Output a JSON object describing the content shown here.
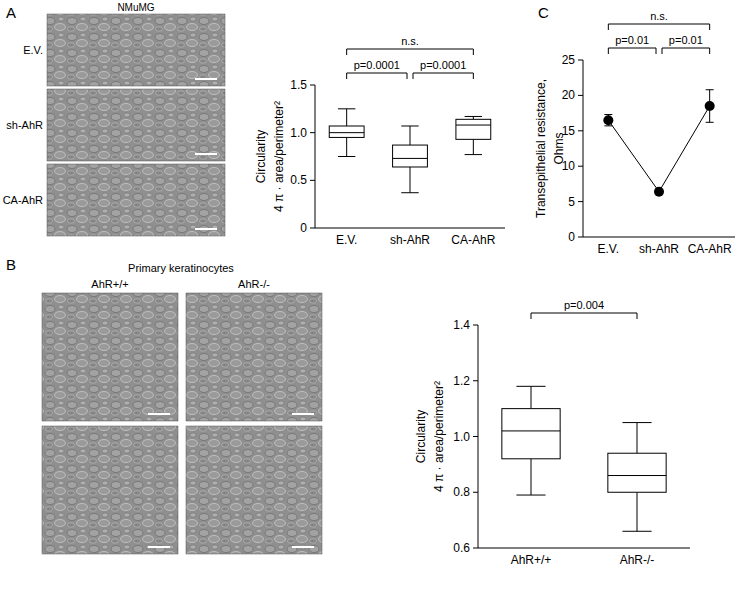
{
  "chart_data": [
    {
      "type": "box",
      "color": "#000000",
      "ylabel": [
        "Circularity",
        "4 π · area/perimeter²"
      ],
      "categories": [
        "E.V.",
        "sh-AhR",
        "CA-AhR"
      ],
      "min": [
        0.75,
        0.37,
        0.77
      ],
      "q1": [
        0.95,
        0.64,
        0.93
      ],
      "median": [
        1.0,
        0.73,
        1.08
      ],
      "q3": [
        1.07,
        0.87,
        1.14
      ],
      "max": [
        1.25,
        1.07,
        1.17
      ],
      "ylim": [
        0,
        1.5
      ],
      "yticks": [
        0,
        0.5,
        {
          "value": 1,
          "label": "1.0"
        },
        1.5
      ],
      "annotations": [
        {
          "text": "p=0.0001",
          "from": 0,
          "to": 1
        },
        {
          "text": "p=0.0001",
          "from": 1,
          "to": 2
        },
        {
          "text": "n.s.",
          "from": 0,
          "to": 2
        }
      ]
    },
    {
      "type": "box",
      "color": "#000000",
      "ylabel": [
        "Circularity",
        "4 π · area/perimeter²"
      ],
      "categories": [
        "AhR+/+",
        "AhR-/-"
      ],
      "min": [
        0.79,
        0.66
      ],
      "q1": [
        0.92,
        0.8
      ],
      "median": [
        1.02,
        0.86
      ],
      "q3": [
        1.1,
        0.94
      ],
      "max": [
        1.18,
        1.05
      ],
      "ylim": [
        0.6,
        1.4
      ],
      "yticks": [
        0.6,
        0.8,
        {
          "value": 1,
          "label": "1.0"
        },
        1.2,
        1.4
      ],
      "annotations": [
        {
          "text": "p=0.004",
          "from": 0,
          "to": 1
        }
      ]
    },
    {
      "type": "line",
      "color": "#000000",
      "marker": "circle",
      "ylabel": [
        "Transepithelial resistance,",
        "Ohms"
      ],
      "categories": [
        "E.V.",
        "sh-AhR",
        "CA-AhR"
      ],
      "values": [
        16.5,
        6.4,
        18.5
      ],
      "errors": [
        0.8,
        0.3,
        2.3
      ],
      "ylim": [
        0,
        25
      ],
      "yticks": [
        0,
        5,
        10,
        15,
        20,
        25
      ],
      "annotations": [
        {
          "text": "p=0.01",
          "from": 0,
          "to": 1
        },
        {
          "text": "p=0.01",
          "from": 1,
          "to": 2
        },
        {
          "text": "n.s.",
          "from": 0,
          "to": 2
        }
      ]
    }
  ],
  "figure": {
    "panel_labels": [
      "A",
      "B",
      "C"
    ],
    "images_A": {
      "title": "NMuMG",
      "rows": [
        "E.V.",
        "sh-AhR",
        "CA-AhR"
      ]
    },
    "images_B": {
      "title": "Primary keratinocytes",
      "columns": [
        "AhR+/+",
        "AhR-/-"
      ]
    }
  }
}
